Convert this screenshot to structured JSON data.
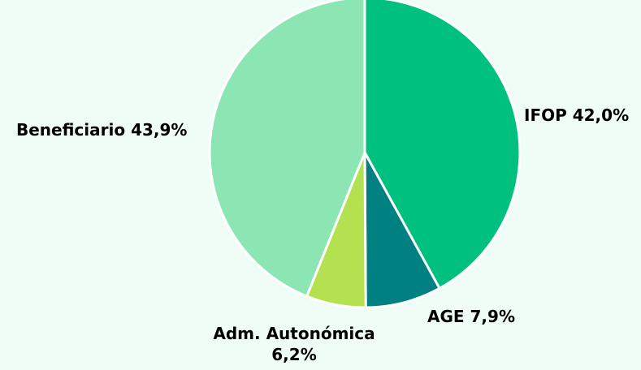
{
  "chart_data": {
    "type": "pie",
    "categories": [
      "IFOP",
      "AGE",
      "Adm. Autonómica",
      "Beneficiario"
    ],
    "values": [
      42.0,
      7.9,
      6.2,
      43.9
    ],
    "labels": [
      [
        "IFOP 42,0%"
      ],
      [
        "AGE 7,9%"
      ],
      [
        "Adm. Autonómica",
        "6,2%"
      ],
      [
        "Beneficiario 43,9%"
      ]
    ],
    "colors": [
      "#00c080",
      "#008080",
      "#b3e150",
      "#8ce6b4"
    ],
    "start_angle": "12 o'clock",
    "direction": "clockwise",
    "legend": "none"
  }
}
